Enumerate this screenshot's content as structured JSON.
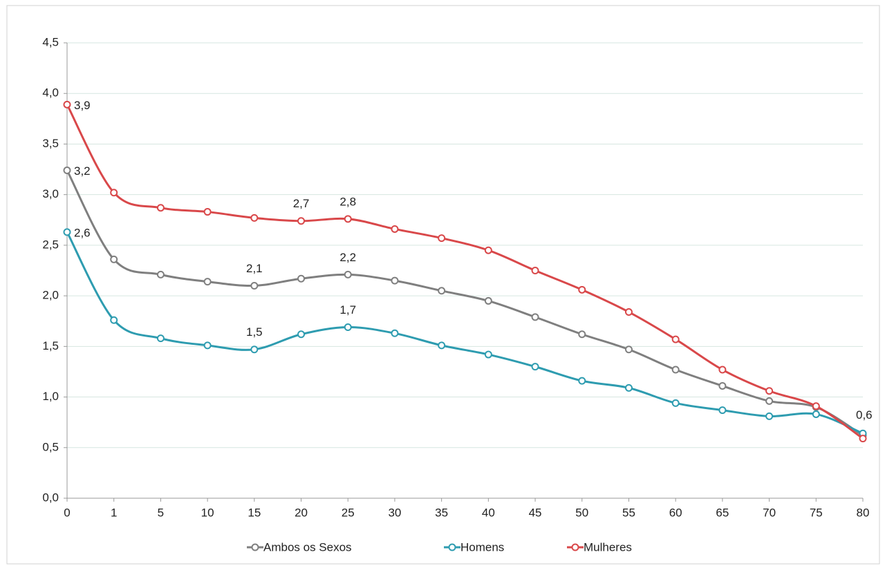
{
  "chart_data": {
    "type": "line",
    "categories": [
      "0",
      "1",
      "5",
      "10",
      "15",
      "20",
      "25",
      "30",
      "35",
      "40",
      "45",
      "50",
      "55",
      "60",
      "65",
      "70",
      "75",
      "80"
    ],
    "series": [
      {
        "name": "Ambos os Sexos",
        "color": "#7f7f7f",
        "values": [
          3.24,
          2.36,
          2.21,
          2.14,
          2.1,
          2.17,
          2.21,
          2.15,
          2.05,
          1.95,
          1.79,
          1.62,
          1.47,
          1.27,
          1.11,
          0.96,
          0.9,
          0.62
        ],
        "value_labels": [
          "3,2",
          null,
          null,
          null,
          "2,1",
          null,
          "2,2",
          null,
          null,
          null,
          null,
          null,
          null,
          null,
          null,
          null,
          null,
          null
        ]
      },
      {
        "name": "Homens",
        "color": "#2e9cb0",
        "values": [
          2.63,
          1.76,
          1.58,
          1.51,
          1.47,
          1.62,
          1.69,
          1.63,
          1.51,
          1.42,
          1.3,
          1.16,
          1.09,
          0.94,
          0.87,
          0.81,
          0.83,
          0.64
        ],
        "value_labels": [
          "2,6",
          null,
          null,
          null,
          "1,5",
          null,
          "1,7",
          null,
          null,
          null,
          null,
          null,
          null,
          null,
          null,
          null,
          null,
          "0,6"
        ]
      },
      {
        "name": "Mulheres",
        "color": "#d9484a",
        "values": [
          3.89,
          3.02,
          2.87,
          2.83,
          2.77,
          2.74,
          2.76,
          2.66,
          2.57,
          2.45,
          2.25,
          2.06,
          1.84,
          1.57,
          1.27,
          1.06,
          0.91,
          0.59
        ],
        "value_labels": [
          "3,9",
          null,
          null,
          null,
          null,
          "2,7",
          "2,8",
          null,
          null,
          null,
          null,
          null,
          null,
          null,
          null,
          null,
          null,
          null
        ]
      }
    ],
    "ylim": [
      0,
      4.5
    ],
    "yticks": [
      {
        "value": 0,
        "label": "0,0"
      },
      {
        "value": 0.5,
        "label": "0,5"
      },
      {
        "value": 1,
        "label": "1,0"
      },
      {
        "value": 1.5,
        "label": "1,5"
      },
      {
        "value": 2,
        "label": "2,0"
      },
      {
        "value": 2.5,
        "label": "2,5"
      },
      {
        "value": 3,
        "label": "3,0"
      },
      {
        "value": 3.5,
        "label": "3,5"
      },
      {
        "value": 4,
        "label": "4,0"
      },
      {
        "value": 4.5,
        "label": "4,5"
      }
    ],
    "grid": true,
    "legend": "bottom"
  }
}
